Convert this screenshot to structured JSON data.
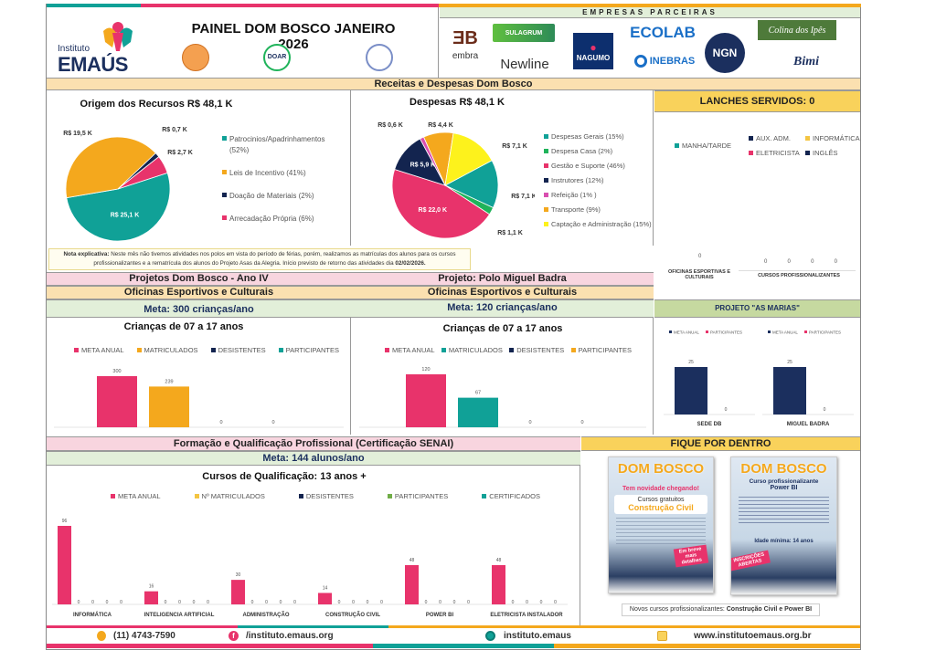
{
  "header": {
    "title": "PAINEL DOM BOSCO JANEIRO 2026",
    "org_logo_small": "Instituto",
    "org_logo_big": "EMAÚS",
    "badges": [
      "seal-badge",
      "DOAR",
      "doar-seal-2"
    ],
    "partners_title": "EMPRESAS PARCEIRAS",
    "partners": [
      "embra",
      "SULAGRUM",
      "Newline",
      "NAGUMO",
      "ECOLAB",
      "INEBRAS",
      "NGN",
      "Colina dos Ipês",
      "Bimi"
    ]
  },
  "finance": {
    "section_title": "Receitas  e  Despesas Dom Bosco",
    "note_label": "Nota explicativa:",
    "note_text": " Neste mês não tivemos atividades nos polos em vista do período de férias, porém, realizamos as matrículas dos alunos para os cursos profissionalizantes e a rematrícula dos alunos do Projeto Asas da Alegria. Início previsto de retorno das atividades dia ",
    "note_date": "02/02/2026."
  },
  "lanches": {
    "title": "LANCHES SERVIDOS: 0",
    "legend_left": [
      "MANHA/TARDE"
    ],
    "legend_right": [
      "AUX. ADM.",
      "INFORMÁTICA",
      "ELETRICISTA",
      "INGLÊS"
    ],
    "left_value": "0",
    "right_values": [
      "0",
      "0",
      "0",
      "0"
    ],
    "cat_left": "OFICINAS ESPORTIVAS E CULTURAIS",
    "cat_right": "CURSOS PROFISSIONALIZANTES"
  },
  "projects": {
    "left_title": "Projetos Dom Bosco - Ano IV",
    "right_title": "Projeto: Polo Miguel Badra",
    "left_sub": "Oficinas Esportivos e Culturais",
    "right_sub": "Oficinas Esportivos e Culturais",
    "left_meta": "Meta: 300 crianças/ano",
    "right_meta": "Meta: 120 crianças/ano"
  },
  "marias": {
    "title": "PROJETO \"AS MARIAS\""
  },
  "formacao": {
    "title": "Formação e Qualificação Profissional (Certificação SENAI)",
    "meta": "Meta:  144 alunos/ano"
  },
  "fique": {
    "title": "FIQUE POR DENTRO",
    "poster1": {
      "brand": "DOM BOSCO",
      "line1": "Tem novidade chegando!",
      "line2": "Cursos gratuitos",
      "line3": "Construção Civil",
      "badge": "Em breve mais detalhes"
    },
    "poster2": {
      "brand": "DOM BOSCO",
      "line1": "Curso profissionalizante",
      "line2": "Power BI",
      "line3": "Idade mínima: 14 anos",
      "badge": "INSCRIÇÕES ABERTAS"
    },
    "caption_prefix": "Novos cursos profissionalizantes: ",
    "caption_bold": "Construção Civil e Power BI"
  },
  "footer": {
    "phone": "(11) 4743-7590",
    "facebook": "/instituto.emaus.org",
    "instagram": "instituto.emaus",
    "website": "www.institutoemaus.org.br"
  },
  "chart_data": [
    {
      "id": "origem",
      "type": "pie",
      "title": "Origem dos Recursos R$ 48,1 K",
      "labels": [
        "Patrocinios/Apadrinhamentos (52%)",
        "Leis de Incentivo (41%)",
        "Doação de Materiais (2%)",
        "Arrecadação Própria (6%)"
      ],
      "values": [
        25.1,
        19.5,
        0.7,
        2.7
      ],
      "data_labels": [
        "R$ 25,1 K",
        "R$ 19,5 K",
        "R$ 0,7 K",
        "R$ 2,7 K"
      ],
      "colors": [
        "#10a197",
        "#f4a81d",
        "#13244f",
        "#e8336b"
      ],
      "legend": "right"
    },
    {
      "id": "despesas",
      "type": "pie",
      "title": "Despesas R$ 48,1 K",
      "labels": [
        "Despesas Gerais (15%)",
        "Despesa Casa (2%)",
        "Gestão e Suporte (46%)",
        "Instrutores (12%)",
        "Refeição (1% )",
        "Transporte (9%)",
        "Captação e Administração (15%)"
      ],
      "values": [
        7.1,
        1.1,
        22.0,
        5.9,
        0.6,
        4.4,
        7.1
      ],
      "data_labels": [
        "R$ 7,1 K",
        "R$ 1,1 K",
        "R$ 22,0 K",
        "R$ 5,9 K",
        "R$ 0,6 K",
        "R$ 4,4 K",
        "R$ 7,1 K"
      ],
      "colors": [
        "#10a197",
        "#1fb35a",
        "#e8336b",
        "#13244f",
        "#d94fb0",
        "#f4a81d",
        "#fdf21c"
      ],
      "legend": "right"
    },
    {
      "id": "dombosco",
      "type": "bar",
      "title": "Crianças de 07 a 17 anos",
      "categories": [
        "META ANUAL",
        "MATRICULADOS",
        "DESISTENTES",
        "PARTICIPANTES"
      ],
      "values": [
        300,
        239,
        0,
        0
      ],
      "colors": [
        "#e8336b",
        "#f4a81d",
        "#13244f",
        "#10a197"
      ],
      "legend": "top"
    },
    {
      "id": "miguelbadra",
      "type": "bar",
      "title": "Crianças de 07 a 17 anos",
      "categories": [
        "META ANUAL",
        "MATRICULADOS",
        "DESISTENTES",
        "PARTICIPANTES"
      ],
      "values": [
        120,
        67,
        0,
        0
      ],
      "colors": [
        "#e8336b",
        "#10a197",
        "#13244f",
        "#f4a81d"
      ],
      "legend": "top"
    },
    {
      "id": "marias",
      "type": "bar",
      "title": "PROJETO \"AS MARIAS\"",
      "groups": [
        "SEDE DB",
        "MIGUEL BADRA"
      ],
      "series": [
        {
          "name": "META ANUAL",
          "values": [
            25,
            25
          ],
          "color": "#1b2f5e"
        },
        {
          "name": "PARTICIPANTES",
          "values": [
            0,
            0
          ],
          "color": "#e8336b"
        }
      ],
      "legend": "top"
    },
    {
      "id": "cursos",
      "type": "bar",
      "title": "Cursos de Qualificação: 13 anos +",
      "categories": [
        "INFORMÁTICA",
        "INTELIGENCIA ARTIFICIAL",
        "ADMINISTRAÇÃO",
        "CONSTRUÇÃO CIVIL",
        "POWER BI",
        "ELETRICISTA INSTALADOR"
      ],
      "series": [
        {
          "name": "META ANUAL",
          "values": [
            96,
            16,
            30,
            14,
            48,
            48
          ],
          "color": "#e8336b"
        },
        {
          "name": "Nº MATRICULADOS",
          "values": [
            0,
            0,
            0,
            0,
            0,
            0
          ],
          "color": "#f4c542"
        },
        {
          "name": "DESISTENTES",
          "values": [
            0,
            0,
            0,
            0,
            0,
            0
          ],
          "color": "#13244f"
        },
        {
          "name": "PARTICIPANTES",
          "values": [
            0,
            0,
            0,
            0,
            0,
            0
          ],
          "color": "#70ad47"
        },
        {
          "name": "CERTIFICADOS",
          "values": [
            0,
            0,
            0,
            0,
            0,
            0
          ],
          "color": "#10a197"
        }
      ],
      "legend": "top"
    }
  ]
}
